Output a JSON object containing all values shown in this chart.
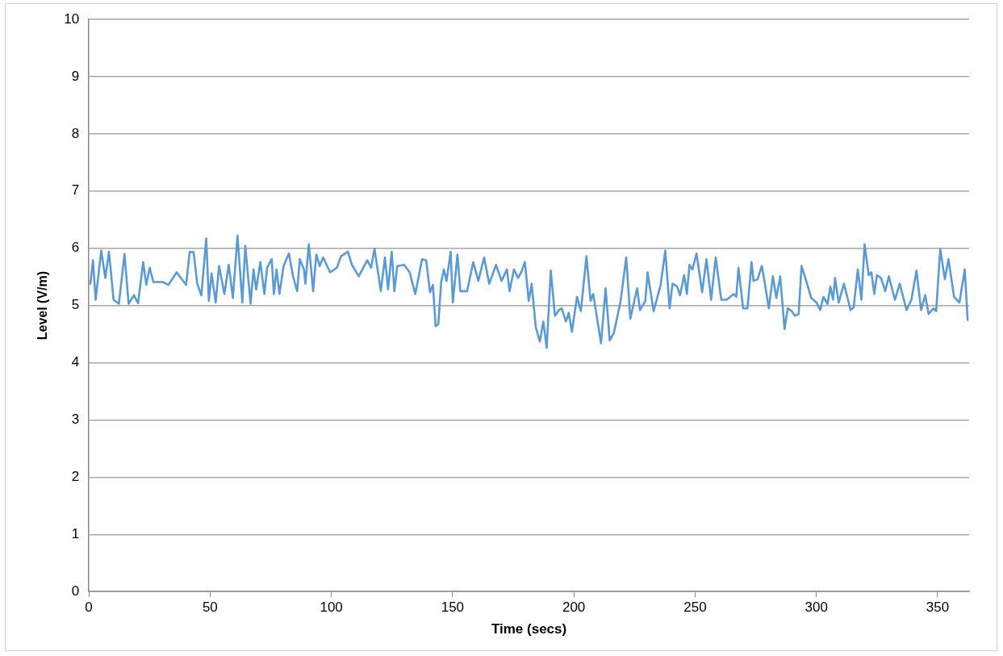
{
  "chart_data": {
    "type": "line",
    "xlabel": "Time (secs)",
    "ylabel": "Level (V/m)",
    "xlim": [
      0,
      363
    ],
    "xticks": [
      0,
      50,
      100,
      150,
      200,
      250,
      300,
      350
    ],
    "ylim": [
      0,
      10
    ],
    "yticks": [
      0,
      1,
      2,
      3,
      4,
      5,
      6,
      7,
      8,
      9,
      10
    ],
    "grid": "y",
    "legend": false,
    "marker": "none",
    "line_style": "solid",
    "series": [
      {
        "color": "#5b9bd5",
        "x": [
          0.6,
          1.7,
          2.8,
          5.1,
          6.8,
          8.3,
          10.2,
          12.4,
          14.7,
          16.4,
          18.6,
          20.3,
          22.4,
          23.7,
          25.1,
          26.6,
          30.5,
          32.8,
          36.2,
          40.1,
          41.6,
          43.2,
          44.7,
          46.4,
          48.4,
          49.5,
          50.6,
          52.3,
          53.7,
          55.9,
          57.7,
          59.4,
          61.3,
          63.3,
          64.5,
          66.7,
          67.9,
          69.0,
          70.7,
          72.4,
          73.5,
          75.4,
          76.3,
          77.4,
          78.6,
          80.3,
          82.5,
          84.2,
          85.9,
          87.0,
          88.7,
          89.3,
          90.7,
          92.5,
          93.8,
          95.2,
          96.6,
          99.5,
          102.3,
          104.0,
          106.8,
          108.5,
          111.3,
          114.8,
          116.4,
          117.8,
          120.4,
          122.1,
          123.4,
          124.9,
          126.0,
          127.2,
          130.0,
          132.3,
          134.6,
          137.4,
          139.1,
          140.7,
          141.9,
          143.0,
          144.1,
          145.3,
          146.4,
          147.5,
          149.2,
          150.1,
          152.0,
          153.2,
          156.0,
          158.5,
          160.6,
          163.0,
          165.1,
          167.9,
          170.2,
          172.4,
          173.5,
          175.3,
          177.0,
          178.6,
          179.8,
          181.4,
          182.6,
          184.3,
          186.0,
          187.4,
          188.8,
          190.5,
          192.2,
          193.9,
          195.0,
          196.7,
          197.9,
          199.2,
          201.3,
          202.9,
          205.2,
          206.9,
          208.0,
          211.2,
          213.1,
          214.8,
          216.5,
          219.3,
          221.6,
          223.3,
          226.1,
          227.3,
          229.5,
          230.4,
          232.9,
          235.8,
          237.7,
          239.5,
          240.7,
          242.6,
          243.8,
          245.5,
          246.6,
          247.7,
          248.9,
          250.6,
          252.9,
          254.7,
          256.6,
          258.5,
          260.8,
          263.0,
          265.9,
          267.0,
          267.9,
          269.8,
          271.6,
          273.3,
          274.1,
          275.8,
          277.5,
          278.6,
          280.4,
          282.1,
          283.5,
          285.1,
          286.9,
          288.2,
          289.9,
          291.1,
          292.7,
          293.9,
          295.6,
          297.9,
          300.1,
          301.6,
          302.9,
          304.6,
          305.8,
          306.9,
          307.7,
          309.2,
          311.4,
          314.1,
          315.4,
          317.1,
          318.6,
          319.9,
          321.6,
          322.7,
          323.9,
          325.0,
          326.7,
          328.4,
          329.9,
          332.4,
          334.4,
          337.2,
          339.2,
          341.3,
          343.2,
          344.9,
          346.3,
          348.3,
          349.4,
          351.1,
          353.0,
          354.5,
          356.8,
          359.0,
          361.2,
          362.4
        ],
        "values": [
          5.38,
          5.79,
          5.1,
          5.96,
          5.48,
          5.94,
          5.1,
          5.03,
          5.9,
          5.03,
          5.18,
          5.04,
          5.76,
          5.36,
          5.66,
          5.41,
          5.41,
          5.36,
          5.58,
          5.36,
          5.94,
          5.93,
          5.38,
          5.18,
          6.17,
          5.08,
          5.56,
          5.05,
          5.69,
          5.2,
          5.71,
          5.13,
          6.22,
          5.05,
          6.04,
          5.03,
          5.63,
          5.28,
          5.76,
          5.2,
          5.66,
          5.81,
          5.2,
          5.63,
          5.2,
          5.69,
          5.91,
          5.51,
          5.25,
          5.81,
          5.63,
          5.38,
          6.07,
          5.25,
          5.89,
          5.69,
          5.84,
          5.58,
          5.66,
          5.86,
          5.94,
          5.71,
          5.51,
          5.79,
          5.66,
          5.99,
          5.25,
          5.84,
          5.28,
          5.94,
          5.25,
          5.69,
          5.71,
          5.58,
          5.2,
          5.81,
          5.79,
          5.23,
          5.36,
          4.64,
          4.67,
          5.41,
          5.63,
          5.43,
          5.94,
          5.05,
          5.89,
          5.25,
          5.25,
          5.76,
          5.43,
          5.84,
          5.38,
          5.71,
          5.43,
          5.63,
          5.25,
          5.63,
          5.48,
          5.61,
          5.76,
          5.08,
          5.38,
          4.62,
          4.37,
          4.72,
          4.26,
          5.61,
          4.82,
          4.92,
          4.95,
          4.72,
          4.87,
          4.54,
          5.15,
          4.9,
          5.86,
          5.08,
          5.2,
          4.34,
          5.3,
          4.39,
          4.52,
          5.08,
          5.84,
          4.77,
          5.3,
          4.92,
          5.08,
          5.58,
          4.9,
          5.36,
          5.96,
          4.95,
          5.38,
          5.33,
          5.18,
          5.53,
          5.2,
          5.71,
          5.63,
          5.91,
          5.23,
          5.81,
          5.1,
          5.84,
          5.1,
          5.1,
          5.2,
          5.15,
          5.66,
          4.95,
          4.95,
          5.76,
          5.43,
          5.46,
          5.69,
          5.43,
          4.95,
          5.51,
          5.13,
          5.51,
          4.59,
          4.95,
          4.9,
          4.82,
          4.85,
          5.69,
          5.46,
          5.13,
          5.05,
          4.92,
          5.15,
          5.03,
          5.33,
          5.1,
          5.48,
          5.05,
          5.38,
          4.92,
          4.97,
          5.63,
          5.1,
          6.07,
          5.53,
          5.58,
          5.2,
          5.53,
          5.48,
          5.25,
          5.51,
          5.1,
          5.38,
          4.92,
          5.1,
          5.61,
          4.92,
          5.18,
          4.85,
          4.95,
          4.9,
          5.99,
          5.46,
          5.81,
          5.15,
          5.05,
          5.63,
          4.75
        ]
      }
    ]
  }
}
